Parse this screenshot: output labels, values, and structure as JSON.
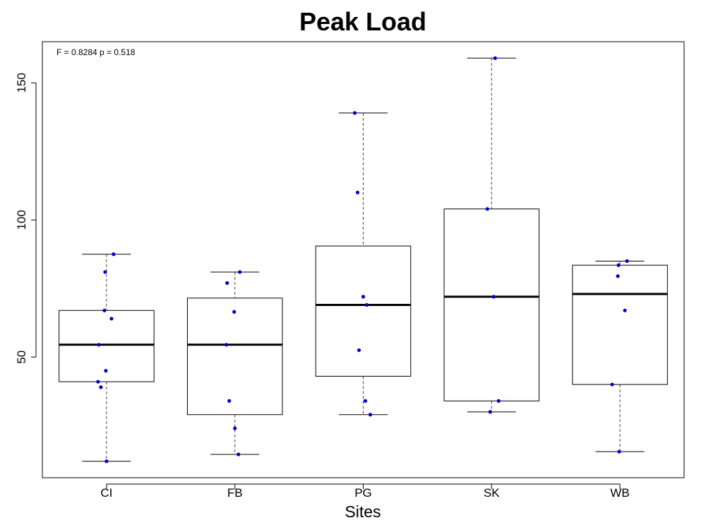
{
  "chart_data": {
    "type": "box",
    "title": "Peak Load",
    "xlabel": "Sites",
    "ylabel": "",
    "annotation": "F = 0.8284 p = 0.518",
    "categories": [
      "CI",
      "FB",
      "PG",
      "SK",
      "WB"
    ],
    "ylim": [
      6,
      165
    ],
    "yticks": [
      50,
      100,
      150
    ],
    "grid": false,
    "point_color": "#0000cc",
    "boxes": [
      {
        "category": "CI",
        "whisker_low": 12,
        "q1": 41,
        "median": 54.5,
        "q3": 67,
        "whisker_high": 87.5
      },
      {
        "category": "FB",
        "whisker_low": 14.5,
        "q1": 29,
        "median": 54.5,
        "q3": 71.5,
        "whisker_high": 81
      },
      {
        "category": "PG",
        "whisker_low": 29,
        "q1": 43,
        "median": 69,
        "q3": 90.5,
        "whisker_high": 139
      },
      {
        "category": "SK",
        "whisker_low": 30,
        "q1": 34,
        "median": 72,
        "q3": 104,
        "whisker_high": 159
      },
      {
        "category": "WB",
        "whisker_low": 15.5,
        "q1": 40,
        "median": 73,
        "q3": 83.5,
        "whisker_high": 85
      }
    ],
    "points": [
      {
        "category": "CI",
        "values": [
          87.5,
          81,
          67,
          64,
          54.5,
          45,
          41,
          39,
          12
        ]
      },
      {
        "category": "FB",
        "values": [
          81,
          77,
          66.5,
          54.5,
          34,
          24,
          14.5
        ]
      },
      {
        "category": "PG",
        "values": [
          139,
          110,
          72,
          69,
          52.5,
          34,
          29
        ]
      },
      {
        "category": "SK",
        "values": [
          159,
          104,
          72,
          34,
          30
        ]
      },
      {
        "category": "WB",
        "values": [
          85,
          83.5,
          79.5,
          67,
          40,
          15.5
        ]
      }
    ]
  }
}
